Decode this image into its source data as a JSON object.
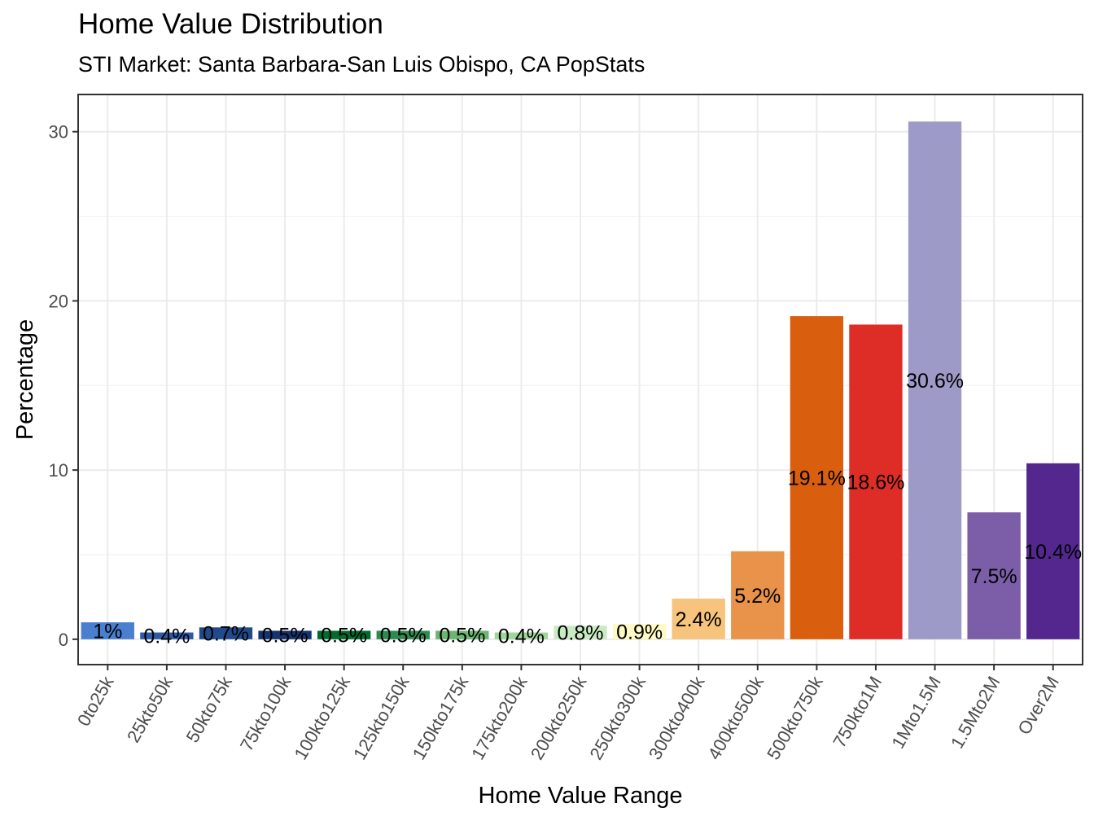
{
  "chart_data": {
    "type": "bar",
    "title": "Home Value Distribution",
    "subtitle": "STI Market: Santa Barbara-San Luis Obispo, CA PopStats",
    "xlabel": "Home Value Range",
    "ylabel": "Percentage",
    "ylim": [
      -1.5,
      32.2
    ],
    "yticks": [
      0,
      10,
      20,
      30
    ],
    "grid": true,
    "legend": "none",
    "categories": [
      "0to25k",
      "25kto50k",
      "50kto75k",
      "75kto100k",
      "100kto125k",
      "125kto150k",
      "150kto175k",
      "175kto200k",
      "200kto250k",
      "250kto300k",
      "300kto400k",
      "400kto500k",
      "500kto750k",
      "750kto1M",
      "1Mto1.5M",
      "1.5Mto2M",
      "Over2M"
    ],
    "values": [
      1.0,
      0.4,
      0.7,
      0.5,
      0.5,
      0.5,
      0.5,
      0.4,
      0.8,
      0.9,
      2.4,
      5.2,
      19.1,
      18.6,
      30.6,
      7.5,
      10.4
    ],
    "labels": [
      "1%",
      "0.4%",
      "0.7%",
      "0.5%",
      "0.5%",
      "0.5%",
      "0.5%",
      "0.4%",
      "0.8%",
      "0.9%",
      "2.4%",
      "5.2%",
      "19.1%",
      "18.6%",
      "30.6%",
      "7.5%",
      "10.4%"
    ],
    "colors": [
      "#4a7fcf",
      "#2b5aa8",
      "#1f4a8c",
      "#13346e",
      "#006b2e",
      "#2e8b4f",
      "#6ab56f",
      "#9fd49a",
      "#c9ebc3",
      "#fff9c4",
      "#f6c47c",
      "#e8924a",
      "#d95f0e",
      "#de2d26",
      "#9e9ac8",
      "#7b5ea7",
      "#54278f"
    ]
  }
}
